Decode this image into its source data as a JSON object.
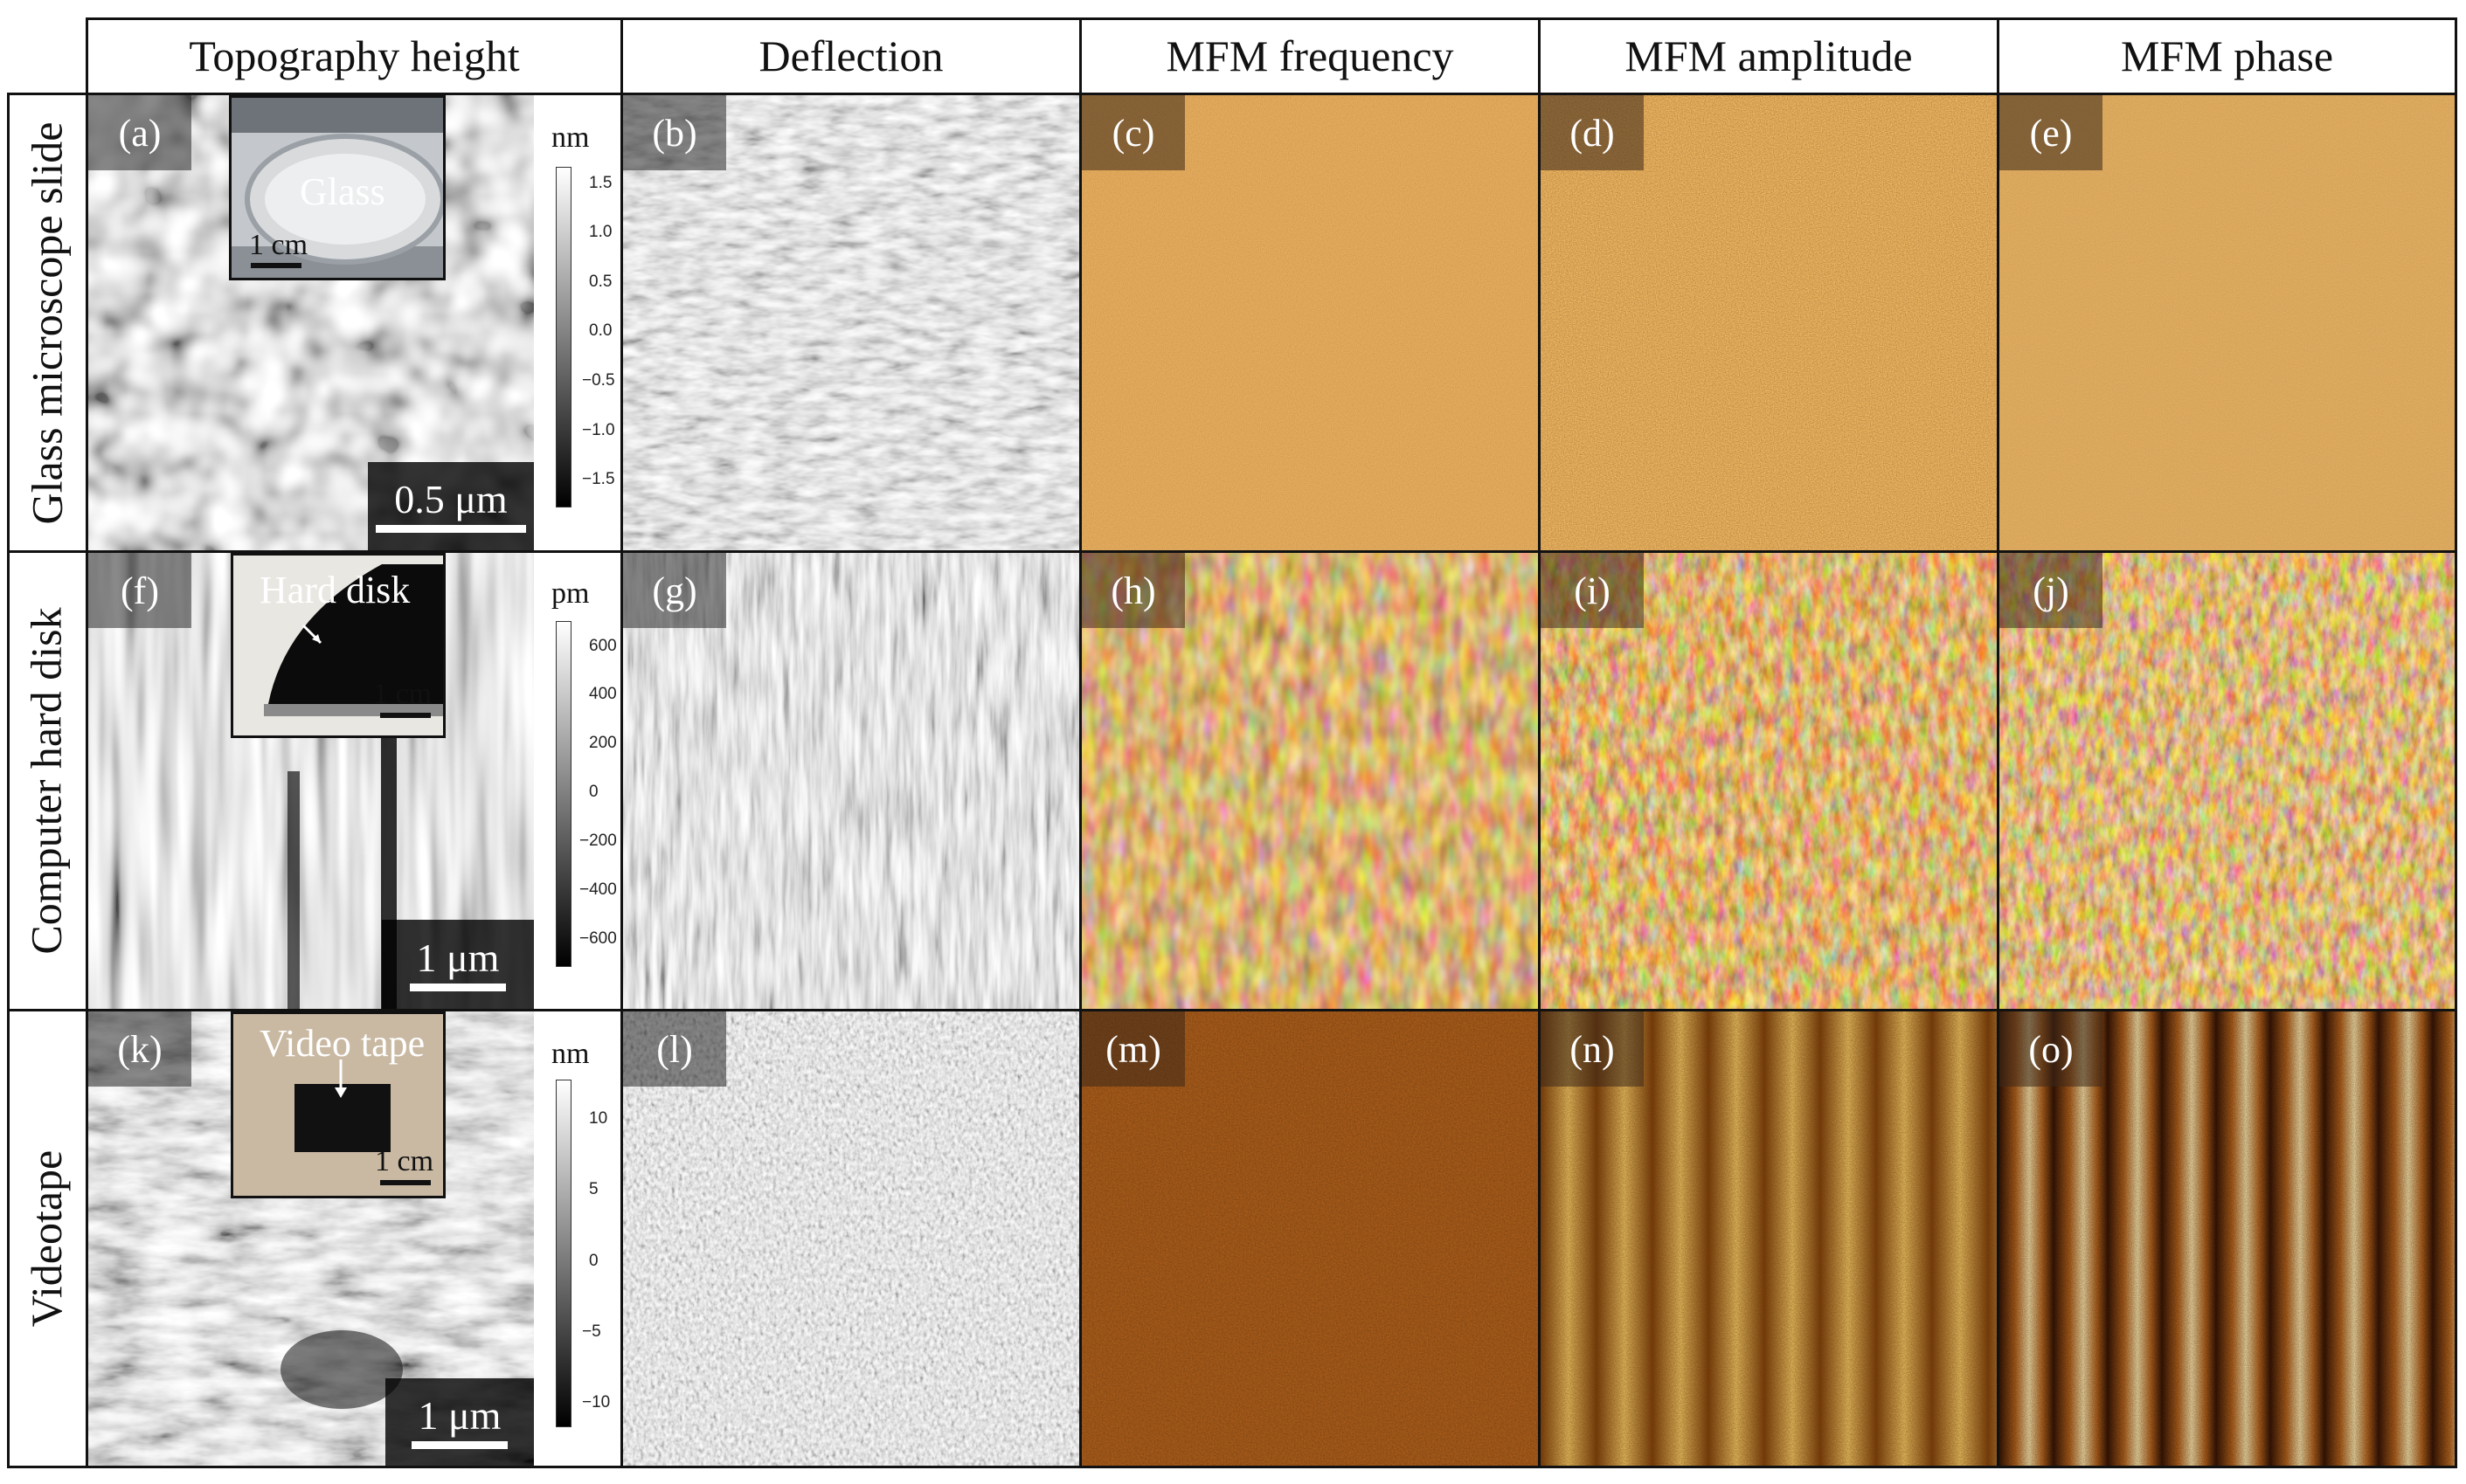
{
  "columns": [
    {
      "label": "Topography height"
    },
    {
      "label": "Deflection"
    },
    {
      "label": "MFM frequency"
    },
    {
      "label": "MFM amplitude"
    },
    {
      "label": "MFM phase"
    }
  ],
  "rows": [
    {
      "label": "Glass microscope slide"
    },
    {
      "label": "Computer hard disk"
    },
    {
      "label": "Videotape"
    }
  ],
  "panels": [
    [
      "(a)",
      "(b)",
      "(c)",
      "(d)",
      "(e)"
    ],
    [
      "(f)",
      "(g)",
      "(h)",
      "(i)",
      "(j)"
    ],
    [
      "(k)",
      "(l)",
      "(m)",
      "(n)",
      "(o)"
    ]
  ],
  "scalebars": [
    "0.5 μm",
    "1 μm",
    "1 μm"
  ],
  "insets": [
    {
      "label": "Glass",
      "scale": "1 cm"
    },
    {
      "label": "Hard disk",
      "scale": "1 cm"
    },
    {
      "label": "Video tape",
      "scale": "1 cm"
    }
  ],
  "colorbars": [
    {
      "unit": "nm",
      "ticks": [
        "1.5",
        "1.0",
        "0.5",
        "0.0",
        "−0.5",
        "−1.0",
        "−1.5"
      ]
    },
    {
      "unit": "pm",
      "ticks": [
        "600",
        "400",
        "200",
        "0",
        "−200",
        "−400",
        "−600"
      ]
    },
    {
      "unit": "nm",
      "ticks": [
        "10",
        "5",
        "0",
        "−5",
        "−10"
      ]
    }
  ],
  "colors": {
    "grayscale_low": "#000000",
    "grayscale_high": "#ffffff",
    "mfm_low": "#3a1604",
    "mfm_mid": "#b8641c",
    "mfm_high": "#fff2c8"
  }
}
